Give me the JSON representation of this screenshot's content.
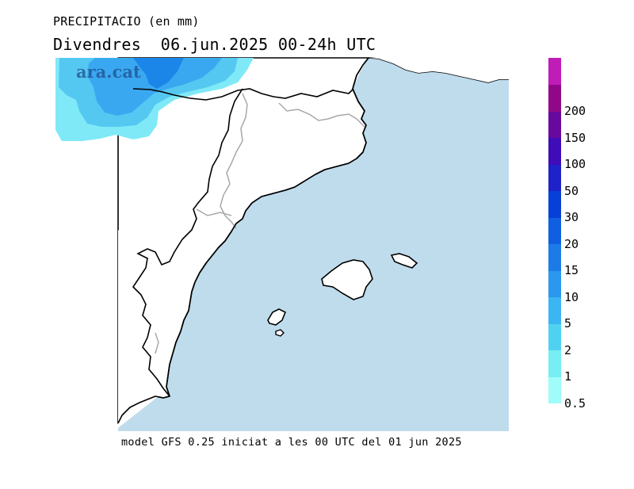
{
  "header": {
    "variable": "PRECIPITACIO (en mm)",
    "date_line": "Divendres  06.jun.2025 00-24h UTC"
  },
  "footer": {
    "model_line": "model GFS 0.25 iniciat a les 00 UTC del 01 jun 2025"
  },
  "watermark": "ara.cat",
  "colors": {
    "sea": "#bfdcec",
    "land": "#ffffff",
    "coast": "#000000",
    "border": "#a8a8a8",
    "precip_light": "#7fe9f7",
    "precip_mid": "#55c8f2",
    "precip_strong": "#3aa8f0",
    "precip_heavy": "#1b86e8"
  },
  "legend": {
    "segments": [
      {
        "label": "0.5",
        "color": "#9ffcf8"
      },
      {
        "label": "1",
        "color": "#77eef4"
      },
      {
        "label": "2",
        "color": "#4fd2f2"
      },
      {
        "label": "5",
        "color": "#3ab6f2"
      },
      {
        "label": "10",
        "color": "#2a98ee"
      },
      {
        "label": "15",
        "color": "#1c7be6"
      },
      {
        "label": "20",
        "color": "#0f5fe0"
      },
      {
        "label": "30",
        "color": "#0640d6"
      },
      {
        "label": "50",
        "color": "#1e22c8"
      },
      {
        "label": "100",
        "color": "#3f0cb8"
      },
      {
        "label": "150",
        "color": "#67089e"
      },
      {
        "label": "200",
        "color": "#900888"
      },
      {
        "label": "",
        "color": "#c01cb8"
      }
    ]
  }
}
